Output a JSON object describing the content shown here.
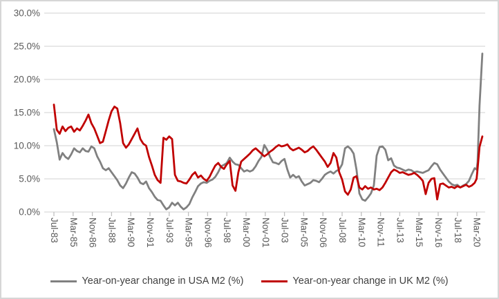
{
  "chart_data": {
    "type": "line",
    "title": "",
    "xlabel": "",
    "ylabel": "",
    "grid": true,
    "legend_position": "bottom",
    "y_axis": {
      "range": [
        0,
        30
      ],
      "tick_values": [
        0,
        5,
        10,
        15,
        20,
        25,
        30
      ],
      "tick_labels": [
        "0.0%",
        "5.0%",
        "10.0%",
        "15.0%",
        "20.0%",
        "25.0%",
        "30.0%"
      ]
    },
    "x_axis": {
      "unit": "months since Jul-1983",
      "tick_months": [
        0,
        20,
        40,
        60,
        80,
        100,
        120,
        140,
        160,
        180,
        200,
        220,
        240,
        260,
        280,
        300,
        320,
        340,
        360,
        380,
        400,
        420,
        440
      ],
      "tick_labels": [
        "Jul-83",
        "Mar-85",
        "Nov-86",
        "Jul-88",
        "Mar-90",
        "Nov-91",
        "Jul-93",
        "Mar-95",
        "Nov-96",
        "Jul-98",
        "Mar-00",
        "Nov-01",
        "Jul-03",
        "Mar-05",
        "Nov-06",
        "Jul-08",
        "Mar-10",
        "Nov-11",
        "Jul-13",
        "Mar-15",
        "Nov-16",
        "Jul-18",
        "Mar-20"
      ]
    },
    "x_months": [
      0,
      3,
      6,
      9,
      12,
      15,
      18,
      21,
      24,
      27,
      30,
      33,
      36,
      39,
      42,
      45,
      48,
      51,
      54,
      57,
      60,
      63,
      66,
      69,
      72,
      75,
      78,
      81,
      84,
      87,
      90,
      93,
      96,
      99,
      102,
      105,
      108,
      111,
      114,
      117,
      120,
      123,
      126,
      129,
      132,
      135,
      138,
      141,
      144,
      147,
      150,
      153,
      156,
      159,
      162,
      165,
      168,
      171,
      174,
      177,
      180,
      183,
      186,
      189,
      192,
      195,
      198,
      201,
      204,
      207,
      210,
      213,
      216,
      219,
      222,
      225,
      228,
      231,
      234,
      237,
      240,
      243,
      246,
      249,
      252,
      255,
      258,
      261,
      264,
      267,
      270,
      273,
      276,
      279,
      282,
      285,
      288,
      291,
      294,
      297,
      300,
      303,
      306,
      309,
      312,
      315,
      318,
      321,
      324,
      327,
      330,
      333,
      336,
      339,
      342,
      345,
      348,
      351,
      354,
      357,
      360,
      363,
      366,
      369,
      372,
      375,
      378,
      381,
      384,
      387,
      390,
      393,
      396,
      399,
      402,
      405,
      408,
      411,
      414,
      417,
      420,
      423,
      426,
      429,
      432,
      435,
      438,
      440,
      441,
      443,
      446
    ],
    "series": [
      {
        "name": "Year-on-year change in USA M2 (%)",
        "color": "#808080",
        "values": [
          12.5,
          10.5,
          7.9,
          8.9,
          8.3,
          8.0,
          8.7,
          9.6,
          9.2,
          9.0,
          9.6,
          9.2,
          9.1,
          9.9,
          9.6,
          8.4,
          7.6,
          6.6,
          6.3,
          6.6,
          6.0,
          5.4,
          4.8,
          4.0,
          3.6,
          4.3,
          5.2,
          6.0,
          5.8,
          5.2,
          4.4,
          4.2,
          4.6,
          3.6,
          3.0,
          2.3,
          1.8,
          1.7,
          1.0,
          0.4,
          0.7,
          1.4,
          1.0,
          1.4,
          0.8,
          0.4,
          0.7,
          1.2,
          2.2,
          3.0,
          3.9,
          4.3,
          4.5,
          4.4,
          4.7,
          4.9,
          5.3,
          6.0,
          6.9,
          7.1,
          7.4,
          8.2,
          7.6,
          7.2,
          7.1,
          6.6,
          6.1,
          6.3,
          6.1,
          6.3,
          6.9,
          7.7,
          8.3,
          10.1,
          9.4,
          8.3,
          7.5,
          7.4,
          7.2,
          7.7,
          8.0,
          6.4,
          5.2,
          5.6,
          5.2,
          5.4,
          4.6,
          4.0,
          4.2,
          4.4,
          4.8,
          4.7,
          4.5,
          5.0,
          5.6,
          5.9,
          6.1,
          5.8,
          6.2,
          6.4,
          7.2,
          9.6,
          9.9,
          9.5,
          8.8,
          6.4,
          2.8,
          1.9,
          1.7,
          2.2,
          2.8,
          4.0,
          8.5,
          9.8,
          9.9,
          9.4,
          7.8,
          8.1,
          7.0,
          6.7,
          6.6,
          6.4,
          6.2,
          6.4,
          6.3,
          6.0,
          6.1,
          6.0,
          5.9,
          6.1,
          6.3,
          6.9,
          7.4,
          7.2,
          6.4,
          5.8,
          5.2,
          4.6,
          4.2,
          4.0,
          4.1,
          3.7,
          4.0,
          4.2,
          4.7,
          5.7,
          6.6,
          6.4,
          7.5,
          16.0,
          23.9
        ]
      },
      {
        "name": "Year-on-year change in UK M2 (%)",
        "color": "#c00000",
        "values": [
          16.2,
          12.4,
          11.8,
          12.9,
          12.2,
          12.7,
          12.9,
          12.1,
          12.6,
          12.3,
          13.0,
          13.8,
          14.7,
          13.4,
          12.6,
          11.5,
          10.4,
          10.6,
          12.2,
          13.8,
          15.2,
          15.9,
          15.6,
          13.4,
          10.4,
          9.7,
          10.2,
          11.0,
          11.8,
          12.6,
          11.0,
          10.3,
          10.0,
          8.3,
          7.0,
          5.6,
          4.8,
          4.4,
          11.2,
          10.9,
          11.4,
          11.0,
          5.6,
          4.7,
          4.6,
          4.4,
          4.3,
          4.9,
          5.6,
          6.0,
          5.2,
          5.5,
          5.0,
          4.7,
          5.3,
          6.2,
          7.0,
          7.4,
          6.8,
          6.5,
          7.2,
          7.7,
          4.0,
          3.2,
          6.0,
          7.6,
          8.0,
          8.4,
          8.8,
          9.3,
          9.6,
          9.2,
          8.8,
          8.4,
          8.7,
          9.1,
          9.4,
          9.8,
          10.1,
          9.9,
          10.0,
          10.2,
          9.6,
          9.3,
          9.5,
          9.7,
          9.4,
          9.0,
          9.2,
          9.6,
          9.9,
          9.4,
          8.8,
          8.2,
          7.6,
          6.8,
          7.4,
          8.9,
          8.2,
          6.0,
          4.9,
          3.1,
          2.6,
          3.4,
          5.2,
          5.4,
          3.7,
          3.4,
          3.9,
          3.5,
          3.7,
          3.4,
          3.5,
          3.3,
          3.7,
          4.4,
          5.2,
          6.0,
          6.4,
          6.2,
          5.9,
          6.0,
          5.8,
          5.6,
          5.7,
          5.9,
          5.6,
          5.2,
          4.7,
          2.7,
          4.4,
          5.0,
          5.1,
          1.9,
          4.2,
          4.3,
          4.0,
          3.7,
          3.8,
          3.6,
          3.9,
          3.7,
          3.9,
          4.1,
          3.8,
          4.0,
          4.4,
          5.0,
          6.5,
          9.8,
          11.4
        ]
      }
    ]
  },
  "legend": {
    "usa_label": "Year-on-year change in USA M2 (%)",
    "uk_label": "Year-on-year change in UK M2 (%)"
  },
  "colors": {
    "usa_line": "#808080",
    "uk_line": "#c00000",
    "gridline": "#d9d9d9",
    "tick": "#bfbfbf",
    "axis_text": "#595959",
    "legend_text": "#404040",
    "frame_border": "#d6d6d6"
  }
}
